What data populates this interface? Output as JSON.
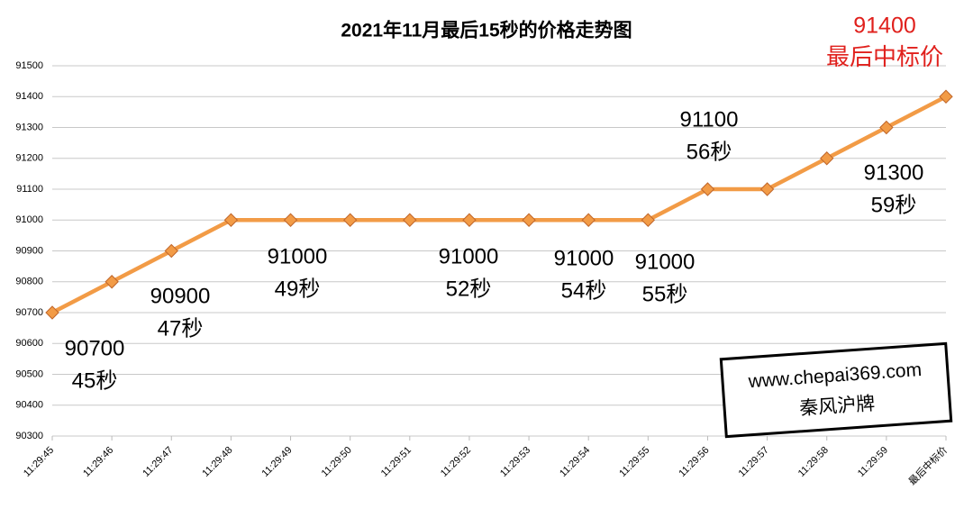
{
  "chart_data": {
    "type": "line",
    "title": "2021年11月最后15秒的价格走势图",
    "categories": [
      "11:29:45",
      "11:29:46",
      "11:29:47",
      "11:29:48",
      "11:29:49",
      "11:29:50",
      "11:29:51",
      "11:29:52",
      "11:29:53",
      "11:29:54",
      "11:29:55",
      "11:29:56",
      "11:29:57",
      "11:29:58",
      "11:29:59",
      "最后中标价"
    ],
    "values": [
      90700,
      90800,
      90900,
      91000,
      91000,
      91000,
      91000,
      91000,
      91000,
      91000,
      91000,
      91100,
      91100,
      91200,
      91300,
      91400
    ],
    "color": "#f29b46",
    "ylim": [
      90300,
      91500
    ],
    "yticks": [
      90300,
      90400,
      90500,
      90600,
      90700,
      90800,
      90900,
      91000,
      91100,
      91200,
      91300,
      91400,
      91500
    ],
    "grid": true,
    "annotations": [
      {
        "value": 90700,
        "text": "45秒"
      },
      {
        "value": 90900,
        "text": "47秒"
      },
      {
        "value": 91000,
        "text": "49秒"
      },
      {
        "value": 91000,
        "text": "52秒"
      },
      {
        "value": 91000,
        "text": "54秒"
      },
      {
        "value": 91000,
        "text": "55秒"
      },
      {
        "value": 91100,
        "text": "56秒"
      },
      {
        "value": 91300,
        "text": "59秒"
      }
    ],
    "final_label": {
      "value": 91400,
      "text": "最后中标价",
      "color": "#e0201c"
    },
    "watermark": {
      "url": "www.chepai369.com",
      "name": "秦风沪牌"
    }
  }
}
